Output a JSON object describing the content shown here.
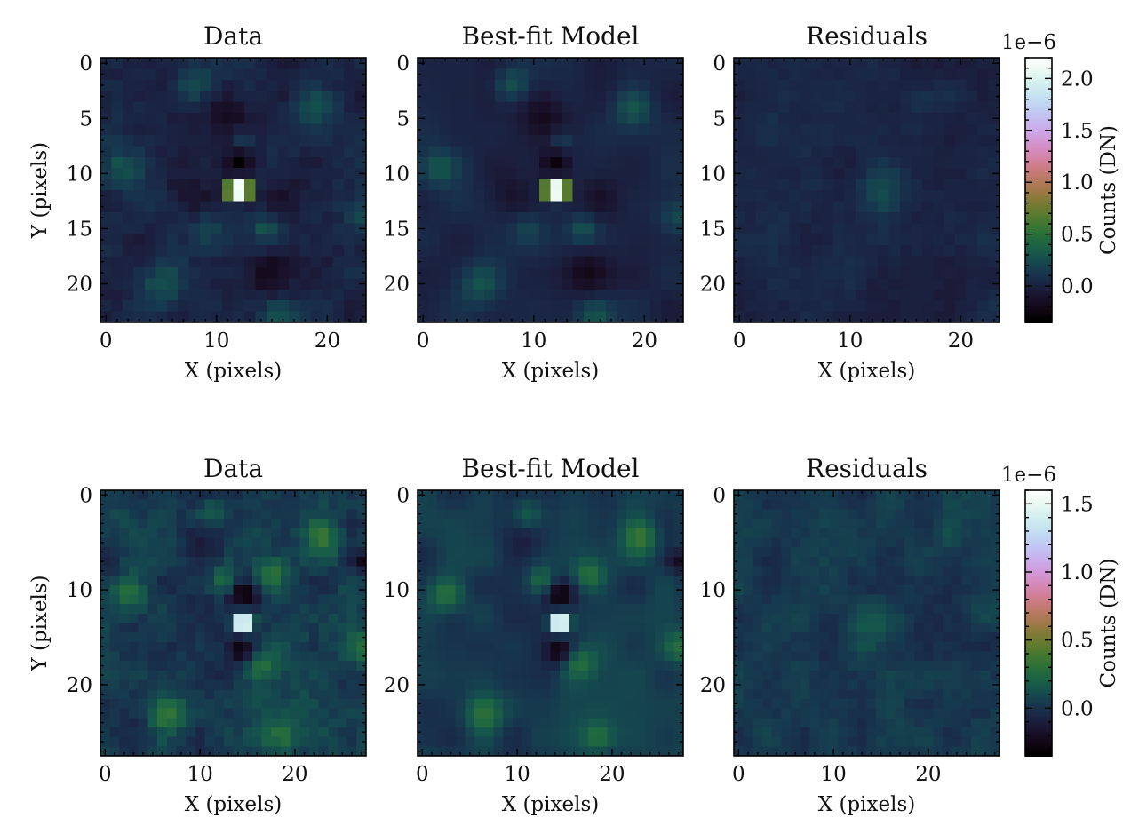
{
  "chart_data": [
    {
      "type": "heatmap",
      "row": 0,
      "grid_size": 24,
      "colormap": "cubehelix",
      "colorbar": {
        "label": "Counts (DN)",
        "scale_label": "1e−6",
        "vmin": -0.35,
        "vmax": 2.2,
        "ticks": [
          0.0,
          0.5,
          1.0,
          1.5,
          2.0
        ],
        "tick_labels": [
          "0.0",
          "0.5",
          "1.0",
          "1.5",
          "2.0"
        ]
      },
      "x_ticks": [
        0,
        10,
        20
      ],
      "x_tick_labels": [
        "0",
        "10",
        "20"
      ],
      "y_ticks": [
        0,
        5,
        10,
        15,
        20
      ],
      "y_tick_labels": [
        "0",
        "5",
        "10",
        "15",
        "20"
      ],
      "panels": [
        {
          "title": "Data",
          "xlabel": "X (pixels)",
          "ylabel": "Y (pixels)",
          "kind": "data"
        },
        {
          "title": "Best-fit Model",
          "xlabel": "X (pixels)",
          "ylabel": "",
          "kind": "model"
        },
        {
          "title": "Residuals",
          "xlabel": "X (pixels)",
          "ylabel": "",
          "kind": "residuals"
        }
      ],
      "source": {
        "x": 12,
        "y": 11.5,
        "peak": 2.2,
        "sigma": 0.9
      },
      "features": [
        {
          "x": 12,
          "y": 9.0,
          "amp": -0.32,
          "sigma": 0.9
        },
        {
          "x": 11,
          "y": 5.0,
          "amp": -0.18,
          "sigma": 1.3
        },
        {
          "x": 15,
          "y": 19.0,
          "amp": -0.22,
          "sigma": 1.4
        },
        {
          "x": 8,
          "y": 12.0,
          "amp": -0.12,
          "sigma": 1.2
        },
        {
          "x": 16,
          "y": 12.0,
          "amp": -0.1,
          "sigma": 1.2
        },
        {
          "x": 8,
          "y": 2.0,
          "amp": 0.28,
          "sigma": 1.1
        },
        {
          "x": 19,
          "y": 4.0,
          "amp": 0.3,
          "sigma": 1.3
        },
        {
          "x": 1.5,
          "y": 9.5,
          "amp": 0.25,
          "sigma": 1.2
        },
        {
          "x": 5,
          "y": 20.0,
          "amp": 0.25,
          "sigma": 1.3
        },
        {
          "x": 15.5,
          "y": 23.0,
          "amp": 0.22,
          "sigma": 1.1
        },
        {
          "x": 23,
          "y": 14.0,
          "amp": 0.2,
          "sigma": 1.1
        },
        {
          "x": 12.5,
          "y": 7.0,
          "amp": 0.2,
          "sigma": 0.8
        },
        {
          "x": 14.5,
          "y": 15.0,
          "amp": 0.25,
          "sigma": 0.9
        },
        {
          "x": 9.5,
          "y": 15.0,
          "amp": 0.15,
          "sigma": 0.9
        }
      ],
      "residual_features": [
        {
          "x": 13,
          "y": 11.5,
          "amp": 0.18,
          "sigma": 1.5
        }
      ]
    },
    {
      "type": "heatmap",
      "row": 1,
      "grid_size": 28,
      "colormap": "cubehelix",
      "colorbar": {
        "label": "Counts (DN)",
        "scale_label": "1e−6",
        "vmin": -0.35,
        "vmax": 1.6,
        "ticks": [
          0.0,
          0.5,
          1.0,
          1.5
        ],
        "tick_labels": [
          "0.0",
          "0.5",
          "1.0",
          "1.5"
        ]
      },
      "x_ticks": [
        0,
        10,
        20
      ],
      "x_tick_labels": [
        "0",
        "10",
        "20"
      ],
      "y_ticks": [
        0,
        10,
        20
      ],
      "y_tick_labels": [
        "0",
        "10",
        "20"
      ],
      "panels": [
        {
          "title": "Data",
          "xlabel": "X (pixels)",
          "ylabel": "Y (pixels)",
          "kind": "data"
        },
        {
          "title": "Best-fit Model",
          "xlabel": "X (pixels)",
          "ylabel": "",
          "kind": "model"
        },
        {
          "title": "Residuals",
          "xlabel": "X (pixels)",
          "ylabel": "",
          "kind": "residuals"
        }
      ],
      "source": {
        "x": 14.5,
        "y": 13.5,
        "peak": 1.6,
        "sigma": 1.0
      },
      "features": [
        {
          "x": 14.5,
          "y": 10.5,
          "amp": -0.32,
          "sigma": 1.0
        },
        {
          "x": 14.5,
          "y": 16.5,
          "amp": -0.3,
          "sigma": 1.0
        },
        {
          "x": 11,
          "y": 5.0,
          "amp": -0.1,
          "sigma": 1.5
        },
        {
          "x": 17.5,
          "y": 8.5,
          "amp": 0.28,
          "sigma": 1.2
        },
        {
          "x": 12.5,
          "y": 9.0,
          "amp": 0.22,
          "sigma": 1.0
        },
        {
          "x": 16.5,
          "y": 17.5,
          "amp": 0.25,
          "sigma": 1.3
        },
        {
          "x": 2.5,
          "y": 10.5,
          "amp": 0.28,
          "sigma": 1.3
        },
        {
          "x": 23,
          "y": 4.5,
          "amp": 0.28,
          "sigma": 1.3
        },
        {
          "x": 6.5,
          "y": 23.0,
          "amp": 0.28,
          "sigma": 1.4
        },
        {
          "x": 18.5,
          "y": 25.5,
          "amp": 0.22,
          "sigma": 1.2
        },
        {
          "x": 11,
          "y": 2.0,
          "amp": 0.18,
          "sigma": 1.1
        },
        {
          "x": 27,
          "y": 16.0,
          "amp": 0.2,
          "sigma": 1.1
        },
        {
          "x": 27,
          "y": 7.0,
          "amp": -0.22,
          "sigma": 0.8
        }
      ],
      "residual_features": [
        {
          "x": 15,
          "y": 13.5,
          "amp": 0.14,
          "sigma": 1.8
        },
        {
          "x": 22,
          "y": 5.0,
          "amp": 0.08,
          "sigma": 1.0
        }
      ]
    }
  ]
}
